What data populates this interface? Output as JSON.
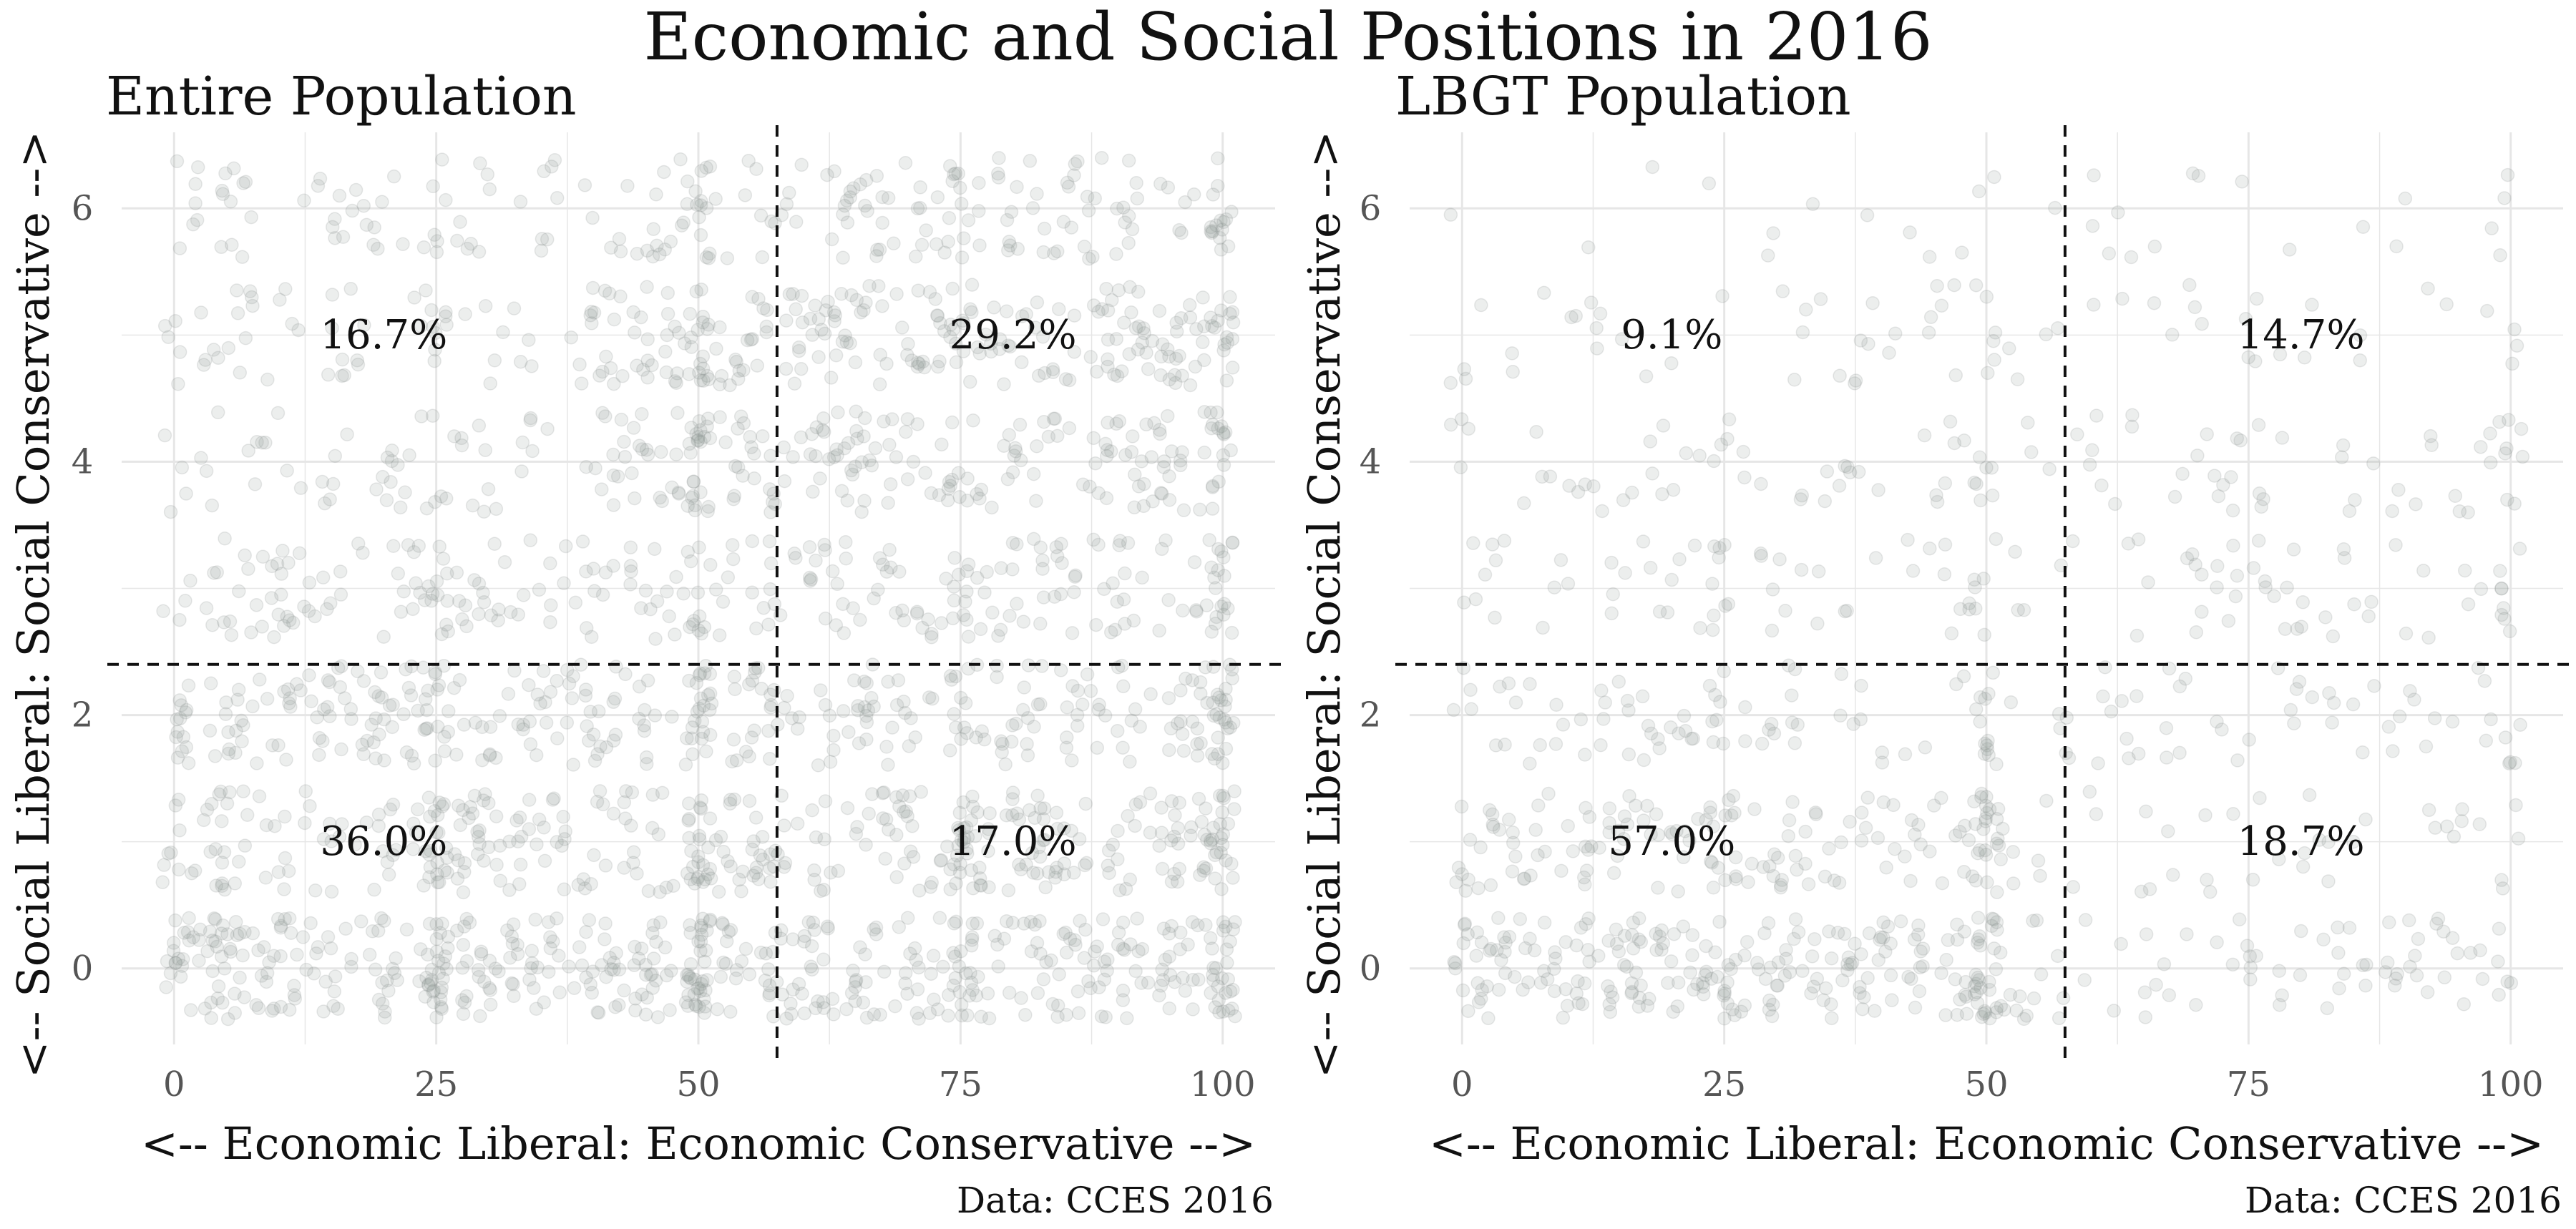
{
  "title": "Economic and Social Positions in 2016",
  "chart_data": [
    {
      "type": "scatter",
      "subtitle": "Entire Population",
      "xlabel": "<-- Economic Liberal: Economic Conservative -->",
      "ylabel": "<-- Social Liberal: Social Conservative -->",
      "caption": "Data: CCES 2016",
      "xlim": [
        -5,
        105
      ],
      "ylim": [
        -0.6,
        6.6
      ],
      "x_ticks": [
        0,
        25,
        50,
        75,
        100
      ],
      "y_ticks": [
        0,
        2,
        4,
        6
      ],
      "grid": true,
      "point_color": "#8a9391",
      "divider_x": 57.5,
      "divider_y": 2.4,
      "quadrant_labels": [
        {
          "label": "16.7%",
          "x": 20,
          "y": 5
        },
        {
          "label": "29.2%",
          "x": 80,
          "y": 5
        },
        {
          "label": "36.0%",
          "x": 20,
          "y": 1
        },
        {
          "label": "17.0%",
          "x": 80,
          "y": 1
        }
      ],
      "density_by_y": {
        "0": 1.0,
        "1": 0.78,
        "2": 0.7,
        "3": 0.52,
        "4": 0.52,
        "5": 0.58,
        "6": 0.42
      },
      "x_bias": "balanced"
    },
    {
      "type": "scatter",
      "subtitle": "LBGT Population",
      "xlabel": "<-- Economic Liberal: Economic Conservative -->",
      "ylabel": "<-- Social Liberal: Social Conservative -->",
      "caption": "Data: CCES 2016",
      "xlim": [
        -5,
        105
      ],
      "ylim": [
        -0.6,
        6.6
      ],
      "x_ticks": [
        0,
        25,
        50,
        75,
        100
      ],
      "y_ticks": [
        0,
        2,
        4,
        6
      ],
      "grid": true,
      "point_color": "#8a9391",
      "divider_x": 57.5,
      "divider_y": 2.4,
      "quadrant_labels": [
        {
          "label": "9.1%",
          "x": 20,
          "y": 5
        },
        {
          "label": "14.7%",
          "x": 80,
          "y": 5
        },
        {
          "label": "57.0%",
          "x": 20,
          "y": 1
        },
        {
          "label": "18.7%",
          "x": 80,
          "y": 1
        }
      ],
      "density_by_y": {
        "0": 0.62,
        "1": 0.38,
        "2": 0.26,
        "3": 0.22,
        "4": 0.2,
        "5": 0.13,
        "6": 0.06
      },
      "x_bias": "liberal"
    }
  ]
}
